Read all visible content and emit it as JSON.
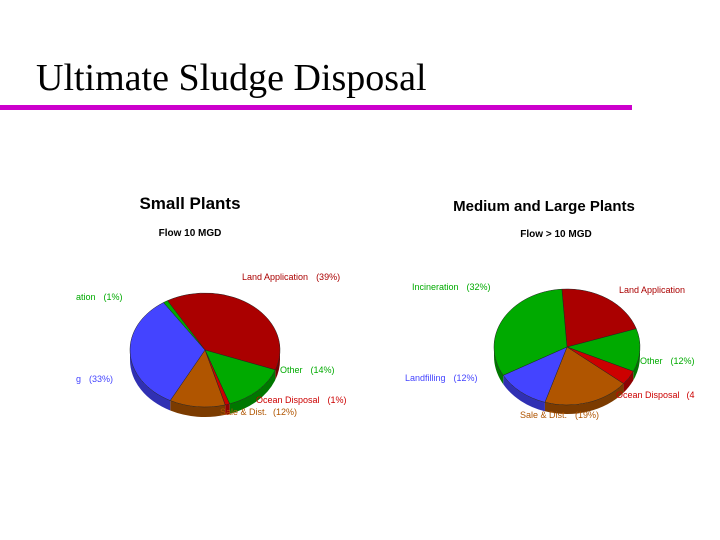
{
  "slide": {
    "title": "Ultimate Sludge Disposal",
    "rule_color": "#cc00cc"
  },
  "chart_data": [
    {
      "type": "pie",
      "title": "Small Plants",
      "subtitle": "Flow 10 MGD",
      "start_angle_deg": -120,
      "slices": [
        {
          "label": "Land Application",
          "value": 39,
          "color": "#aa0000"
        },
        {
          "label": "Other",
          "value": 14,
          "color": "#00aa00"
        },
        {
          "label": "Ocean Disposal",
          "value": 1,
          "color": "#cc0000"
        },
        {
          "label": "Sale & Dist.",
          "value": 12,
          "color": "#b05500"
        },
        {
          "label": "",
          "value": 33,
          "color": "#4444ff"
        },
        {
          "label": "",
          "value": 1,
          "color": "#00aa00"
        }
      ],
      "data_labels": [
        {
          "text": "Land Application",
          "pct": "(39%)"
        },
        {
          "text": "ation",
          "pct": "(1%)"
        },
        {
          "text": "Other",
          "pct": "(14%)"
        },
        {
          "text": "g",
          "pct": "(33%)"
        },
        {
          "text": "Ocean Disposal",
          "pct": "(1%)"
        },
        {
          "text": "Sale & Dist.",
          "pct": "(12%)"
        }
      ]
    },
    {
      "type": "pie",
      "title": "Medium and Large Plants",
      "subtitle": "Flow > 10 MGD",
      "start_angle_deg": -94,
      "slices": [
        {
          "label": "Land Application",
          "value": 21,
          "color": "#aa0000"
        },
        {
          "label": "Other",
          "value": 12,
          "color": "#00aa00"
        },
        {
          "label": "Ocean Disposal",
          "value": 4,
          "color": "#cc0000"
        },
        {
          "label": "Sale & Dist.",
          "value": 19,
          "color": "#b05500"
        },
        {
          "label": "Landfilling",
          "value": 12,
          "color": "#4444ff"
        },
        {
          "label": "Incineration",
          "value": 32,
          "color": "#00aa00"
        }
      ],
      "data_labels": [
        {
          "text": "Incineration",
          "pct": "(32%)"
        },
        {
          "text": "Land Application",
          "pct": ""
        },
        {
          "text": "Other",
          "pct": "(12%)"
        },
        {
          "text": "Landfilling",
          "pct": "(12%)"
        },
        {
          "text": "Ocean Disposal",
          "pct": "(4"
        },
        {
          "text": "Sale & Dist.",
          "pct": "(19%)"
        }
      ]
    }
  ]
}
